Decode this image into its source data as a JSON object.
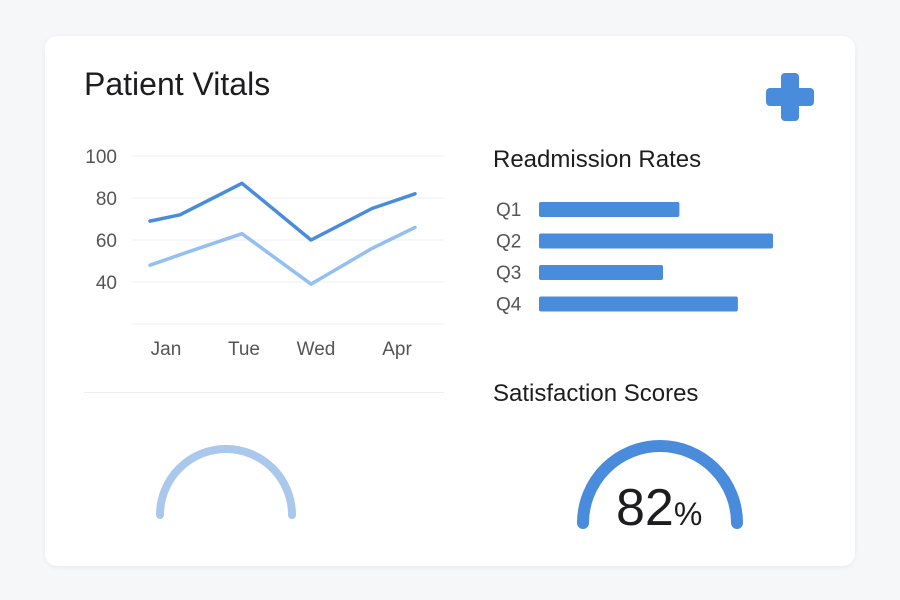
{
  "header": {
    "title": "Patient Vitals",
    "icon": "medical-cross-icon"
  },
  "colors": {
    "accent": "#4a8cdc",
    "light": "#93bff2",
    "gauge_light": "#a9c8ec"
  },
  "chart_data": [
    {
      "type": "line",
      "categories": [
        "Jan",
        "",
        "Tue",
        "Wed",
        "",
        "Apr"
      ],
      "x_tick_labels": [
        "Jan",
        "Tue",
        "Wed",
        "Apr"
      ],
      "y_ticks": [
        100,
        80,
        60,
        40
      ],
      "ylim": [
        20,
        100
      ],
      "grid": true,
      "series": [
        {
          "values": [
            69,
            72,
            87,
            60,
            75,
            82
          ],
          "color": "#4a8cdc"
        },
        {
          "values": [
            48,
            53,
            63,
            39,
            56,
            66
          ],
          "color": "#93bff2"
        }
      ]
    },
    {
      "type": "bar",
      "orientation": "horizontal",
      "title": "Readmission Rates",
      "categories": [
        "Q1",
        "Q2",
        "Q3",
        "Q4"
      ],
      "values": [
        60,
        100,
        53,
        85
      ],
      "color": "#4a8cdc"
    }
  ],
  "satisfaction": {
    "title": "Satisfaction Scores",
    "value": "82",
    "unit": "%"
  }
}
